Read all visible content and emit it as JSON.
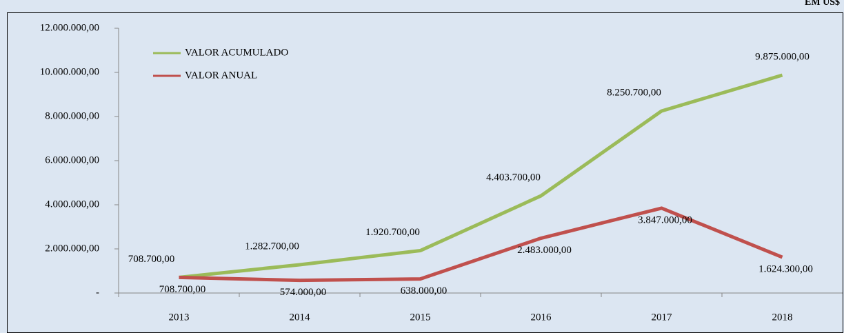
{
  "chart_data": {
    "type": "line",
    "subtitle": "EM US$",
    "categories": [
      "2013",
      "2014",
      "2015",
      "2016",
      "2017",
      "2018"
    ],
    "series": [
      {
        "name": "VALOR ACUMULADO",
        "color": "#9bbb59",
        "values": [
          708700,
          1282700,
          1920700,
          4403700,
          8250700,
          9875000
        ],
        "value_labels": [
          "708.700,00",
          "1.282.700,00",
          "1.920.700,00",
          "4.403.700,00",
          "8.250.700,00",
          "9.875.000,00"
        ]
      },
      {
        "name": "VALOR ANUAL",
        "color": "#c0504d",
        "values": [
          708700,
          574000,
          638000,
          2483000,
          3847000,
          1624300
        ],
        "value_labels": [
          "708.700,00",
          "574.000,00",
          "638.000,00",
          "2.483.000,00",
          "3.847.000,00",
          "1.624.300,00"
        ]
      }
    ],
    "ylim": [
      0,
      12000000
    ],
    "yticks": [
      {
        "value": 0,
        "label": "-"
      },
      {
        "value": 2000000,
        "label": "2.000.000,00"
      },
      {
        "value": 4000000,
        "label": "4.000.000,00"
      },
      {
        "value": 6000000,
        "label": "6.000.000,00"
      },
      {
        "value": 8000000,
        "label": "8.000.000,00"
      },
      {
        "value": 10000000,
        "label": "10.000.000,00"
      },
      {
        "value": 12000000,
        "label": "12.000.000,00"
      }
    ],
    "grid": false,
    "legend": "top-left"
  }
}
